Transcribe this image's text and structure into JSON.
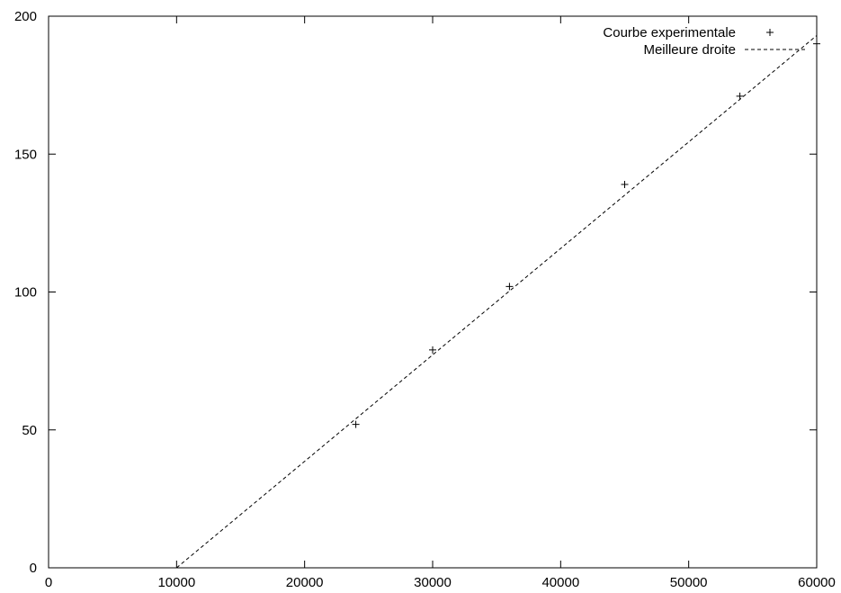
{
  "chart_data": {
    "type": "scatter",
    "title": "",
    "xlabel": "",
    "ylabel": "",
    "xlim": [
      0,
      60000
    ],
    "ylim": [
      0,
      200
    ],
    "x_ticks": [
      "0",
      "10000",
      "20000",
      "30000",
      "40000",
      "50000",
      "60000"
    ],
    "y_ticks": [
      "0",
      "50",
      "100",
      "150",
      "200"
    ],
    "grid": false,
    "legend_position": "top-right",
    "series": [
      {
        "name": "Courbe experimentale",
        "style": "points-plus",
        "color": "#000000",
        "x": [
          24000,
          30000,
          36000,
          45000,
          54000,
          60000
        ],
        "y": [
          52,
          79,
          102,
          139,
          171,
          190
        ]
      },
      {
        "name": "Meilleure droite",
        "style": "dashed-line",
        "color": "#000000",
        "x": [
          10000,
          60000
        ],
        "y": [
          0,
          193
        ]
      }
    ]
  }
}
